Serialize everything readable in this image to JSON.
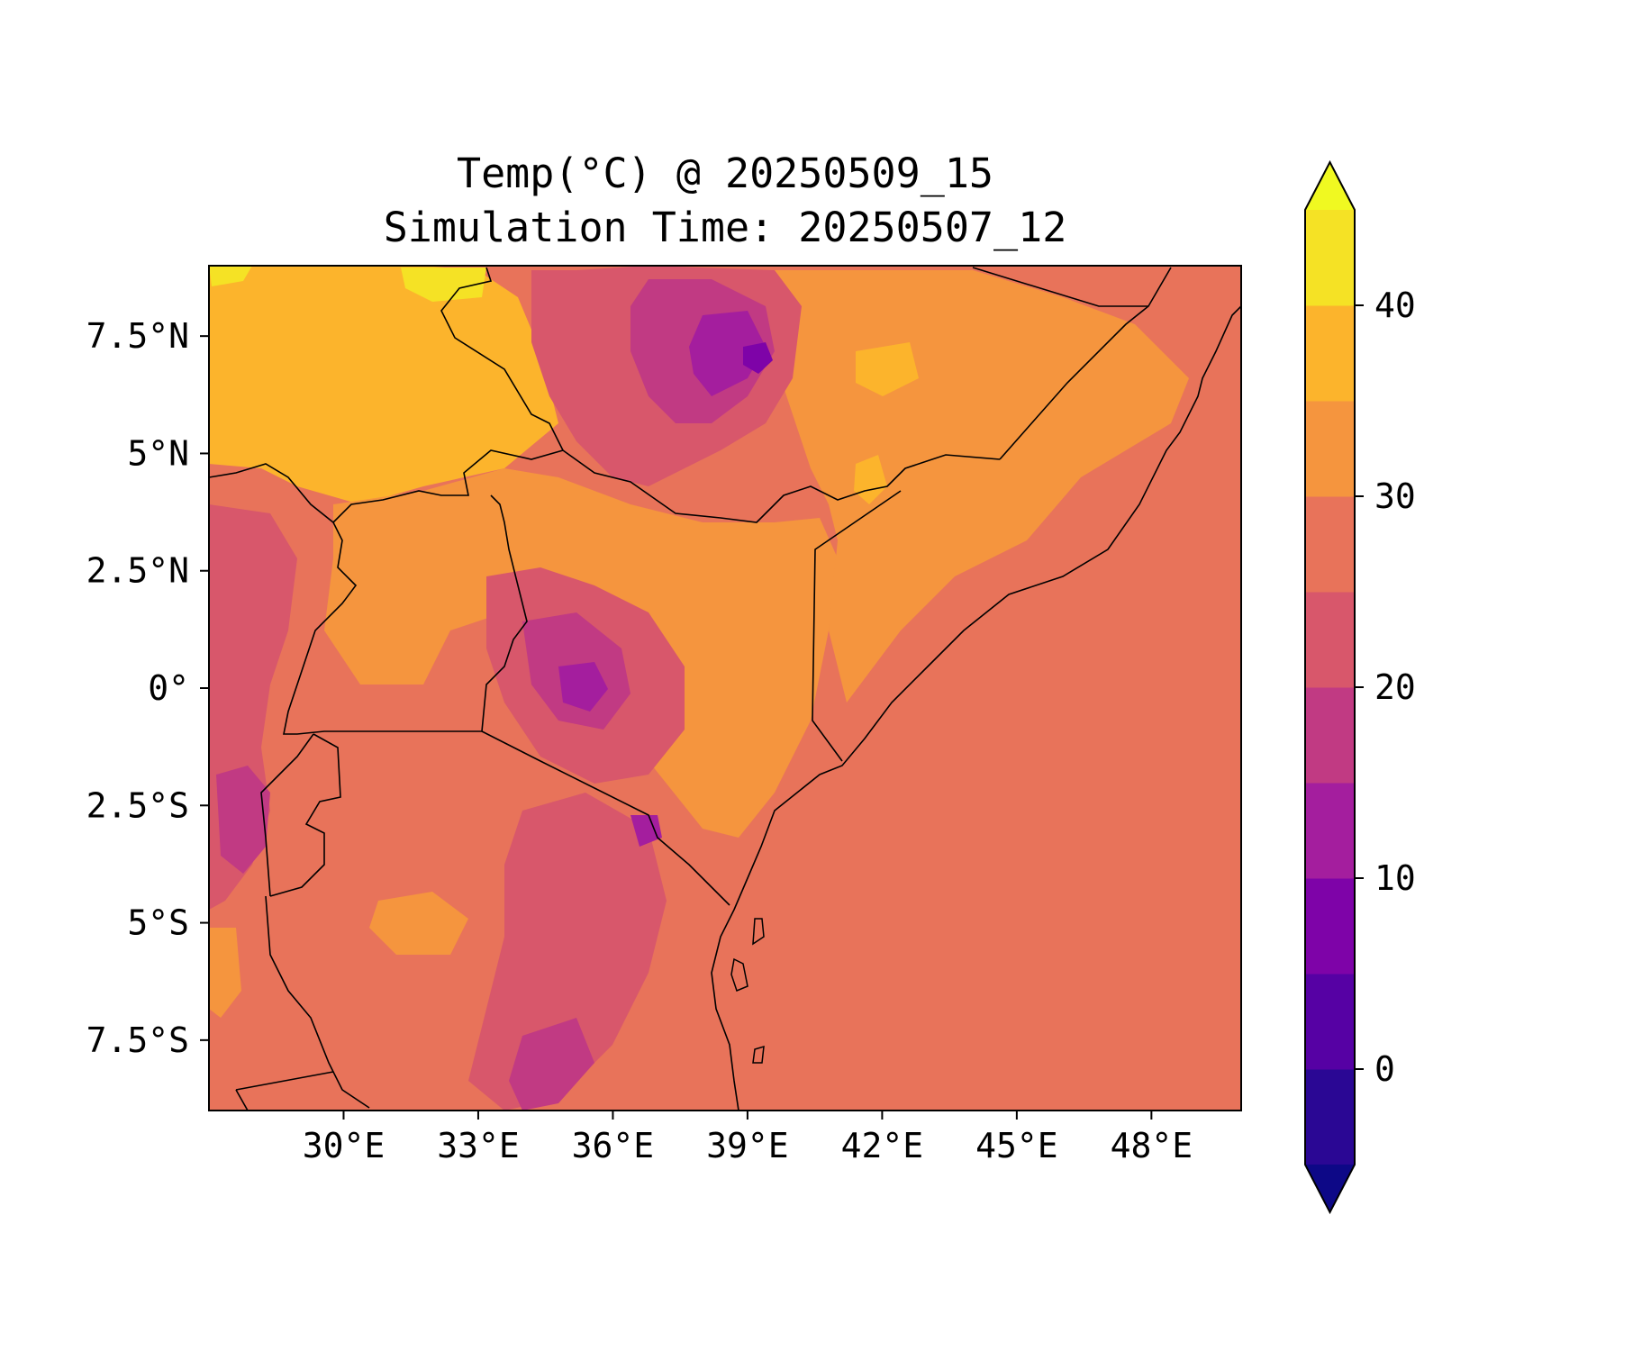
{
  "title": {
    "line1": "Temp(°C) @ 20250509_15",
    "line2": "Simulation Time: 20250507_12"
  },
  "map": {
    "lon_range": [
      27,
      50
    ],
    "lat_range": [
      -9,
      9
    ],
    "x_ticks": [
      {
        "value": 30,
        "label": "30°E"
      },
      {
        "value": 33,
        "label": "33°E"
      },
      {
        "value": 36,
        "label": "36°E"
      },
      {
        "value": 39,
        "label": "39°E"
      },
      {
        "value": 42,
        "label": "42°E"
      },
      {
        "value": 45,
        "label": "45°E"
      },
      {
        "value": 48,
        "label": "48°E"
      }
    ],
    "y_ticks": [
      {
        "value": 7.5,
        "label": "7.5°N"
      },
      {
        "value": 5,
        "label": "5°N"
      },
      {
        "value": 2.5,
        "label": "2.5°N"
      },
      {
        "value": 0,
        "label": "0°"
      },
      {
        "value": -2.5,
        "label": "2.5°S"
      },
      {
        "value": -5,
        "label": "5°S"
      },
      {
        "value": -7.5,
        "label": "7.5°S"
      }
    ],
    "background_color": "#e8735a"
  },
  "colorbar": {
    "range": [
      -5,
      45
    ],
    "extend": "both",
    "bins": [
      {
        "from": -5,
        "to": 0,
        "color": "#2a0794"
      },
      {
        "from": 0,
        "to": 5,
        "color": "#5601a4"
      },
      {
        "from": 5,
        "to": 10,
        "color": "#7e03a8"
      },
      {
        "from": 10,
        "to": 15,
        "color": "#a41e9e"
      },
      {
        "from": 15,
        "to": 20,
        "color": "#c13a83"
      },
      {
        "from": 20,
        "to": 25,
        "color": "#d8576b"
      },
      {
        "from": 25,
        "to": 30,
        "color": "#e8735a"
      },
      {
        "from": 30,
        "to": 35,
        "color": "#f5953e"
      },
      {
        "from": 35,
        "to": 40,
        "color": "#fcb42c"
      },
      {
        "from": 40,
        "to": 45,
        "color": "#f5e225"
      }
    ],
    "under_color": "#0d0887",
    "over_color": "#f0f921",
    "ticks": [
      {
        "value": 0,
        "label": "0"
      },
      {
        "value": 10,
        "label": "10"
      },
      {
        "value": 20,
        "label": "20"
      },
      {
        "value": 30,
        "label": "30"
      },
      {
        "value": 40,
        "label": "40"
      }
    ]
  }
}
